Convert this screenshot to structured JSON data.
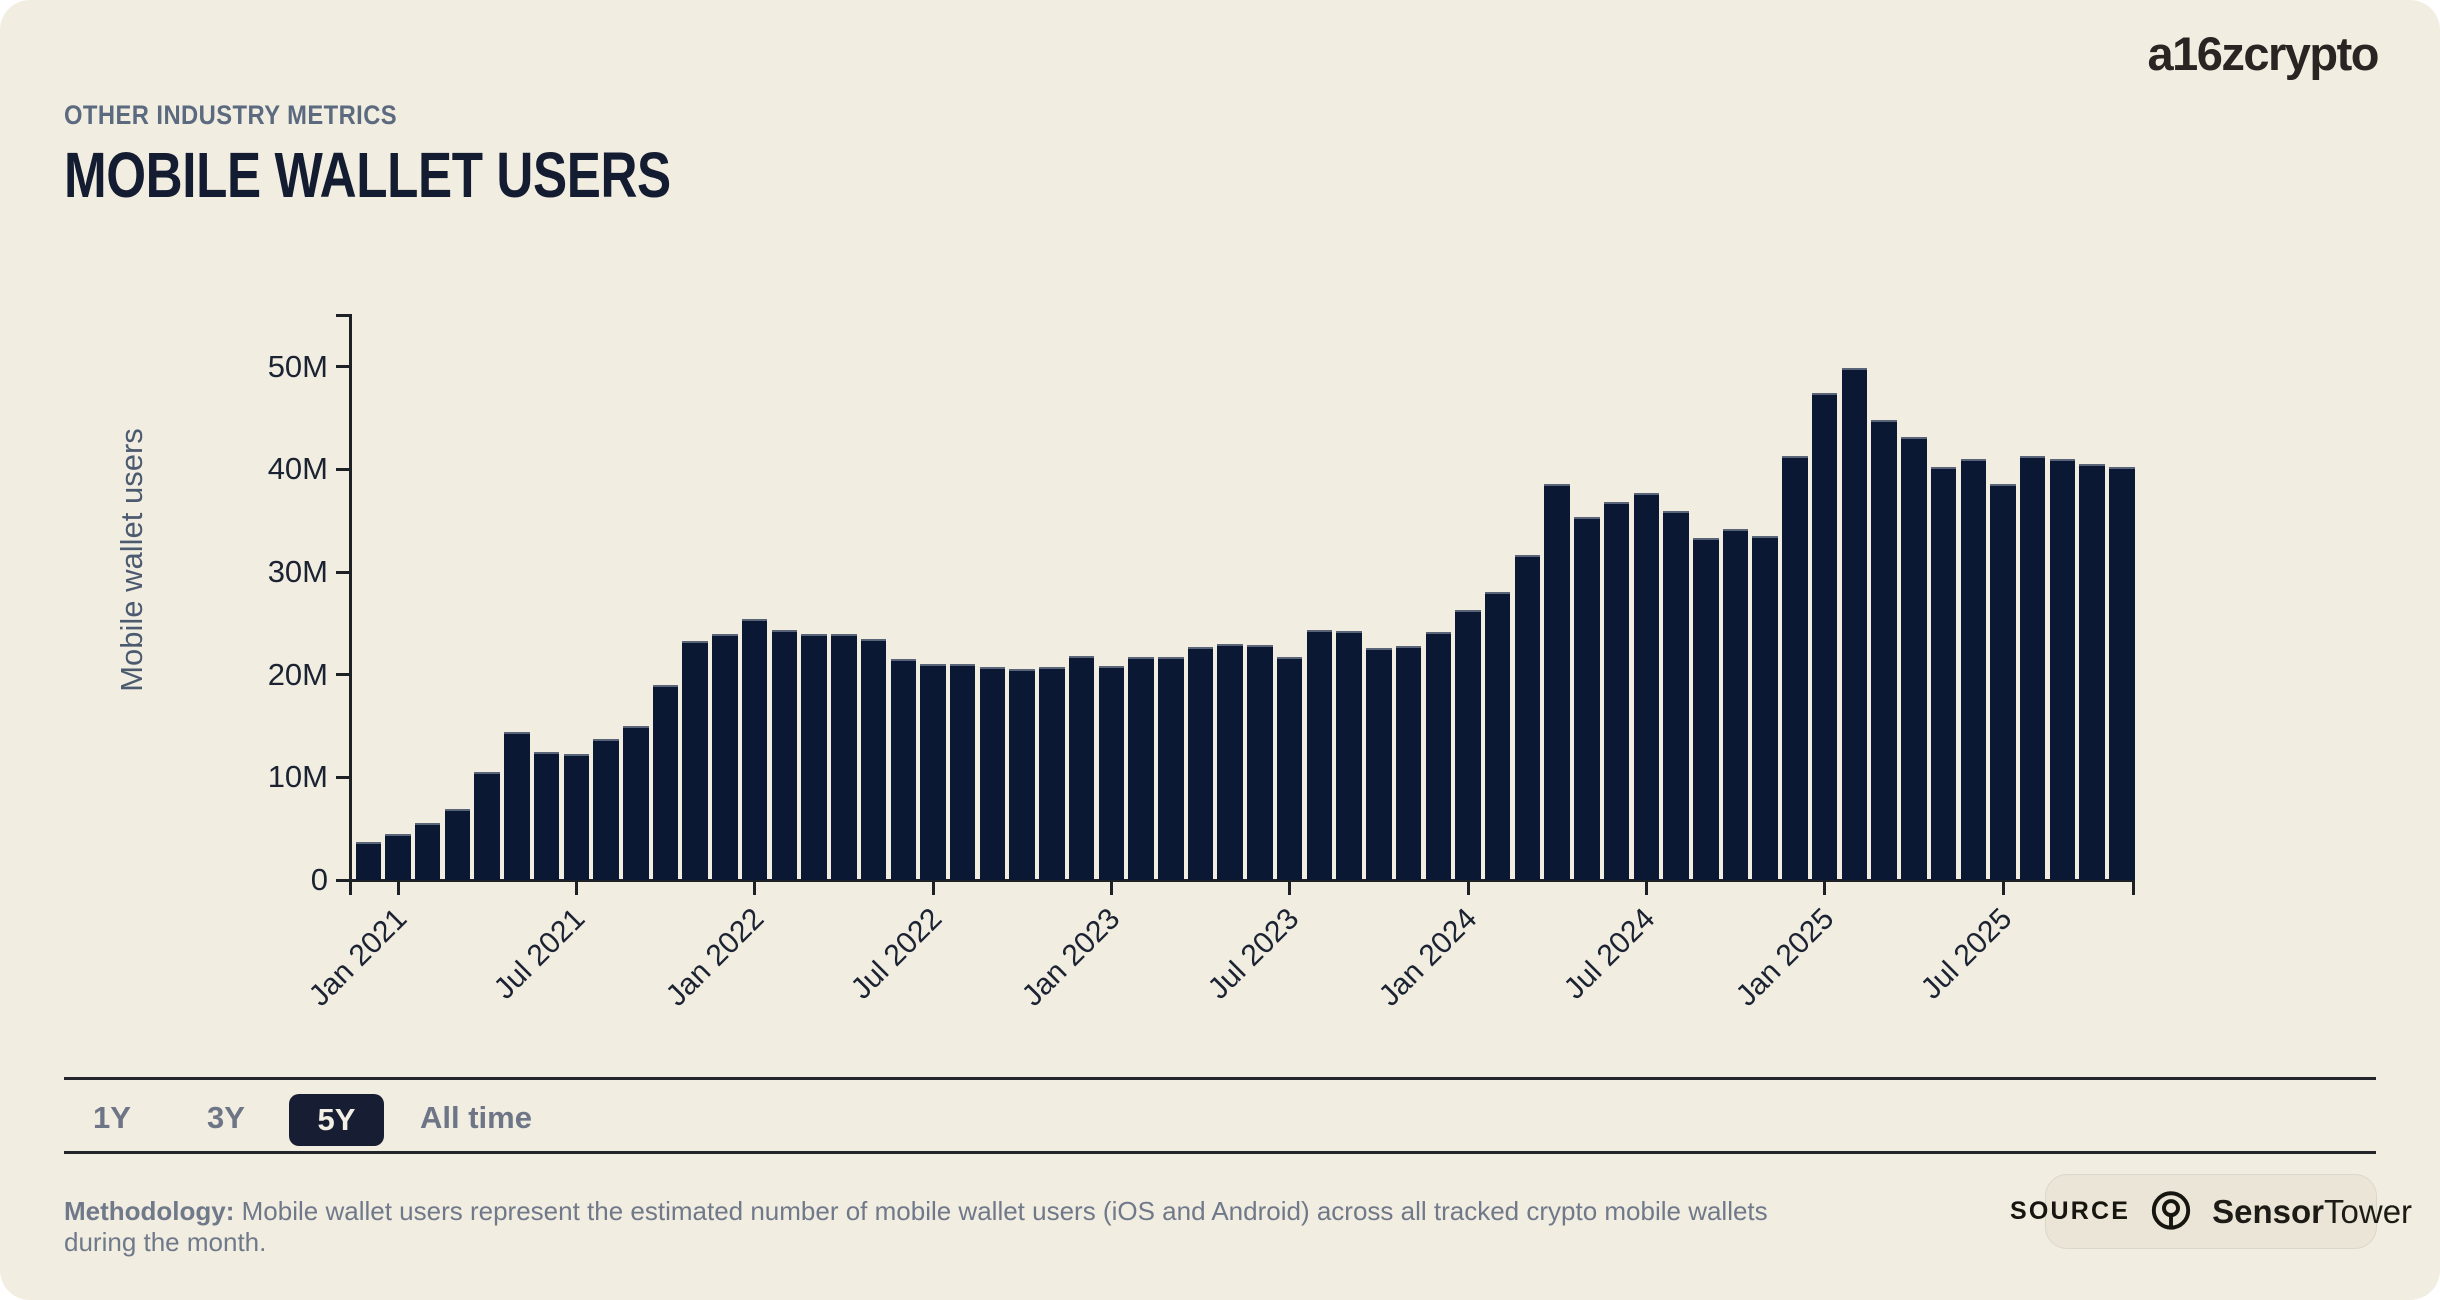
{
  "header": {
    "eyebrow": "OTHER INDUSTRY METRICS",
    "title": "MOBILE WALLET USERS"
  },
  "logo": {
    "text": "a16zcrypto"
  },
  "chart_data": {
    "type": "bar",
    "title": "Mobile wallet users",
    "xlabel": "",
    "ylabel": "Mobile wallet users",
    "unit": "millions of users",
    "ylim": [
      0,
      55
    ],
    "grid": "off",
    "legend": "none",
    "bar_color": "#0b1833",
    "y_ticks": [
      {
        "value": 0,
        "label": "0"
      },
      {
        "value": 10,
        "label": "10M"
      },
      {
        "value": 20,
        "label": "20M"
      },
      {
        "value": 30,
        "label": "30M"
      },
      {
        "value": 40,
        "label": "40M"
      },
      {
        "value": 50,
        "label": "50M"
      }
    ],
    "categories": [
      "Dec 2020",
      "Jan 2021",
      "Feb 2021",
      "Mar 2021",
      "Apr 2021",
      "May 2021",
      "Jun 2021",
      "Jul 2021",
      "Aug 2021",
      "Sep 2021",
      "Oct 2021",
      "Nov 2021",
      "Dec 2021",
      "Jan 2022",
      "Feb 2022",
      "Mar 2022",
      "Apr 2022",
      "May 2022",
      "Jun 2022",
      "Jul 2022",
      "Aug 2022",
      "Sep 2022",
      "Oct 2022",
      "Nov 2022",
      "Dec 2022",
      "Jan 2023",
      "Feb 2023",
      "Mar 2023",
      "Apr 2023",
      "May 2023",
      "Jun 2023",
      "Jul 2023",
      "Aug 2023",
      "Sep 2023",
      "Oct 2023",
      "Nov 2023",
      "Dec 2023",
      "Jan 2024",
      "Feb 2024",
      "Mar 2024",
      "Apr 2024",
      "May 2024",
      "Jun 2024",
      "Jul 2024",
      "Aug 2024",
      "Sep 2024",
      "Oct 2024",
      "Nov 2024",
      "Dec 2024",
      "Jan 2025",
      "Feb 2025",
      "Mar 2025",
      "Apr 2025",
      "May 2025",
      "Jun 2025",
      "Jul 2025",
      "Aug 2025",
      "Sep 2025",
      "Oct 2025",
      "Nov 2025"
    ],
    "values": [
      3.7,
      4.5,
      5.6,
      6.9,
      10.5,
      14.4,
      12.5,
      12.3,
      13.7,
      15.0,
      19.0,
      23.3,
      24.0,
      25.4,
      24.4,
      24.0,
      24.0,
      23.5,
      21.5,
      21.0,
      21.0,
      20.7,
      20.6,
      20.7,
      21.8,
      20.8,
      21.7,
      21.7,
      22.7,
      23.0,
      22.9,
      21.7,
      24.4,
      24.3,
      22.6,
      22.8,
      24.2,
      26.3,
      28.1,
      31.7,
      38.6,
      35.4,
      36.8,
      37.7,
      35.9,
      33.3,
      34.2,
      33.5,
      41.3,
      47.4,
      49.9,
      44.8,
      43.2,
      40.2,
      41.0,
      38.6,
      41.3,
      41.0,
      40.5,
      40.2
    ],
    "x_ticks": [
      {
        "index": 1,
        "label": "Jan 2021"
      },
      {
        "index": 7,
        "label": "Jul 2021"
      },
      {
        "index": 13,
        "label": "Jan 2022"
      },
      {
        "index": 19,
        "label": "Jul 2022"
      },
      {
        "index": 25,
        "label": "Jan 2023"
      },
      {
        "index": 31,
        "label": "Jul 2023"
      },
      {
        "index": 37,
        "label": "Jan 2024"
      },
      {
        "index": 43,
        "label": "Jul 2024"
      },
      {
        "index": 49,
        "label": "Jan 2025"
      },
      {
        "index": 55,
        "label": "Jul 2025"
      }
    ]
  },
  "range_selector": {
    "options": [
      {
        "label": "1Y",
        "selected": false
      },
      {
        "label": "3Y",
        "selected": false
      },
      {
        "label": "5Y",
        "selected": true
      },
      {
        "label": "All time",
        "selected": false
      }
    ]
  },
  "footer": {
    "methodology_label": "Methodology:",
    "methodology_text": " Mobile wallet users represent the estimated number of mobile wallet users (iOS and Android) across all tracked crypto mobile wallets during the month.",
    "source_label": "SOURCE",
    "source_brand_bold": "Sensor",
    "source_brand_regular": "Tower"
  },
  "colors": {
    "background": "#f1ede1",
    "bar": "#0b1833",
    "title_text": "#141c31",
    "eyebrow_text": "#5c6a80",
    "axis": "#1d2025",
    "muted_text": "#6d7586",
    "chip_background": "#171e33",
    "chip_text": "#f3efe4",
    "badge_background": "#eae5d7"
  }
}
